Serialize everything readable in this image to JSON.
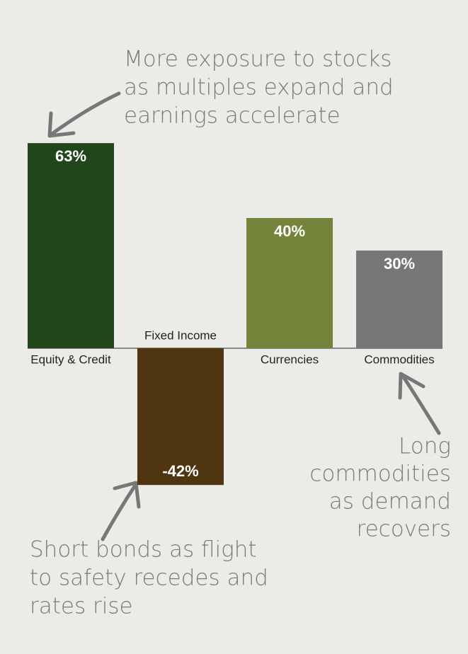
{
  "chart_data": {
    "type": "bar",
    "categories": [
      "Equity & Credit",
      "Fixed Income",
      "Currencies",
      "Commodities"
    ],
    "values": [
      63,
      -42,
      40,
      30
    ],
    "value_labels": [
      "63%",
      "-42%",
      "40%",
      "30%"
    ],
    "colors": [
      "#21461b",
      "#4f3510",
      "#74843b",
      "#777777"
    ],
    "annotations": [
      [
        "More exposure to stocks",
        "as multiples expand and",
        "earnings accelerate"
      ],
      [
        "Long",
        "commodities",
        "as demand",
        "recovers"
      ],
      [
        "Short bonds as flight",
        "to safety recedes and",
        "rates rise"
      ]
    ]
  }
}
